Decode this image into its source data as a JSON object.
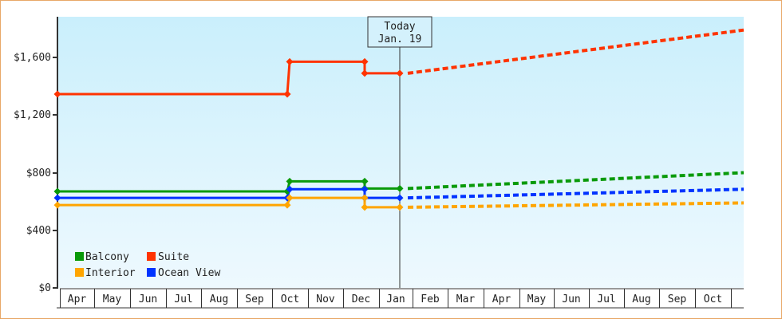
{
  "chart_data": {
    "type": "line",
    "title": "",
    "xlabel": "",
    "ylabel": "",
    "ylim": [
      0,
      1870
    ],
    "y_ticks": [
      {
        "value": 0,
        "label": "$0"
      },
      {
        "value": 400,
        "label": "$400"
      },
      {
        "value": 800,
        "label": "$800"
      },
      {
        "value": 1200,
        "label": "$1,200"
      },
      {
        "value": 1600,
        "label": "$1,600"
      }
    ],
    "x_months": [
      "Apr",
      "May",
      "Jun",
      "Jul",
      "Aug",
      "Sep",
      "Oct",
      "Nov",
      "Dec",
      "Jan",
      "Feb",
      "Mar",
      "Apr",
      "May",
      "Jun",
      "Jul",
      "Aug",
      "Sep",
      "Oct"
    ],
    "today_marker": {
      "line1": "Today",
      "line2": "Jan. 19"
    },
    "legend": [
      {
        "name": "Balcony",
        "color": "#0a9a0a"
      },
      {
        "name": "Suite",
        "color": "#ff3300"
      },
      {
        "name": "Interior",
        "color": "#ffa500"
      },
      {
        "name": "Ocean View",
        "color": "#0033ff"
      }
    ],
    "series": [
      {
        "name": "Suite",
        "color": "#ff3300",
        "historical": [
          {
            "date": "Apr",
            "value": 1345
          },
          {
            "date": "early Oct",
            "value": 1345
          },
          {
            "date": "early Oct",
            "value": 1570
          },
          {
            "date": "mid Dec",
            "value": 1570
          },
          {
            "date": "mid Dec",
            "value": 1490
          },
          {
            "date": "Jan 19",
            "value": 1490
          }
        ],
        "projected": [
          {
            "date": "Jan 19",
            "value": 1490
          },
          {
            "date": "end Oct",
            "value": 1790
          }
        ]
      },
      {
        "name": "Balcony",
        "color": "#0a9a0a",
        "historical": [
          {
            "date": "Apr",
            "value": 670
          },
          {
            "date": "early Oct",
            "value": 670
          },
          {
            "date": "early Oct",
            "value": 740
          },
          {
            "date": "mid Dec",
            "value": 740
          },
          {
            "date": "mid Dec",
            "value": 690
          },
          {
            "date": "Jan 19",
            "value": 690
          }
        ],
        "projected": [
          {
            "date": "Jan 19",
            "value": 690
          },
          {
            "date": "end Oct",
            "value": 800
          }
        ]
      },
      {
        "name": "Ocean View",
        "color": "#0033ff",
        "historical": [
          {
            "date": "Apr",
            "value": 625
          },
          {
            "date": "early Oct",
            "value": 625
          },
          {
            "date": "early Oct",
            "value": 685
          },
          {
            "date": "mid Dec",
            "value": 685
          },
          {
            "date": "mid Dec",
            "value": 625
          },
          {
            "date": "Jan 19",
            "value": 625
          }
        ],
        "projected": [
          {
            "date": "Jan 19",
            "value": 625
          },
          {
            "date": "end Oct",
            "value": 685
          }
        ]
      },
      {
        "name": "Interior",
        "color": "#ffa500",
        "historical": [
          {
            "date": "Apr",
            "value": 575
          },
          {
            "date": "early Oct",
            "value": 575
          },
          {
            "date": "early Oct",
            "value": 625
          },
          {
            "date": "mid Dec",
            "value": 625
          },
          {
            "date": "mid Dec",
            "value": 560
          },
          {
            "date": "Jan 19",
            "value": 560
          }
        ],
        "projected": [
          {
            "date": "Jan 19",
            "value": 560
          },
          {
            "date": "end Oct",
            "value": 590
          }
        ]
      }
    ],
    "grid": false,
    "legend_position": "lower-left inside plot"
  }
}
